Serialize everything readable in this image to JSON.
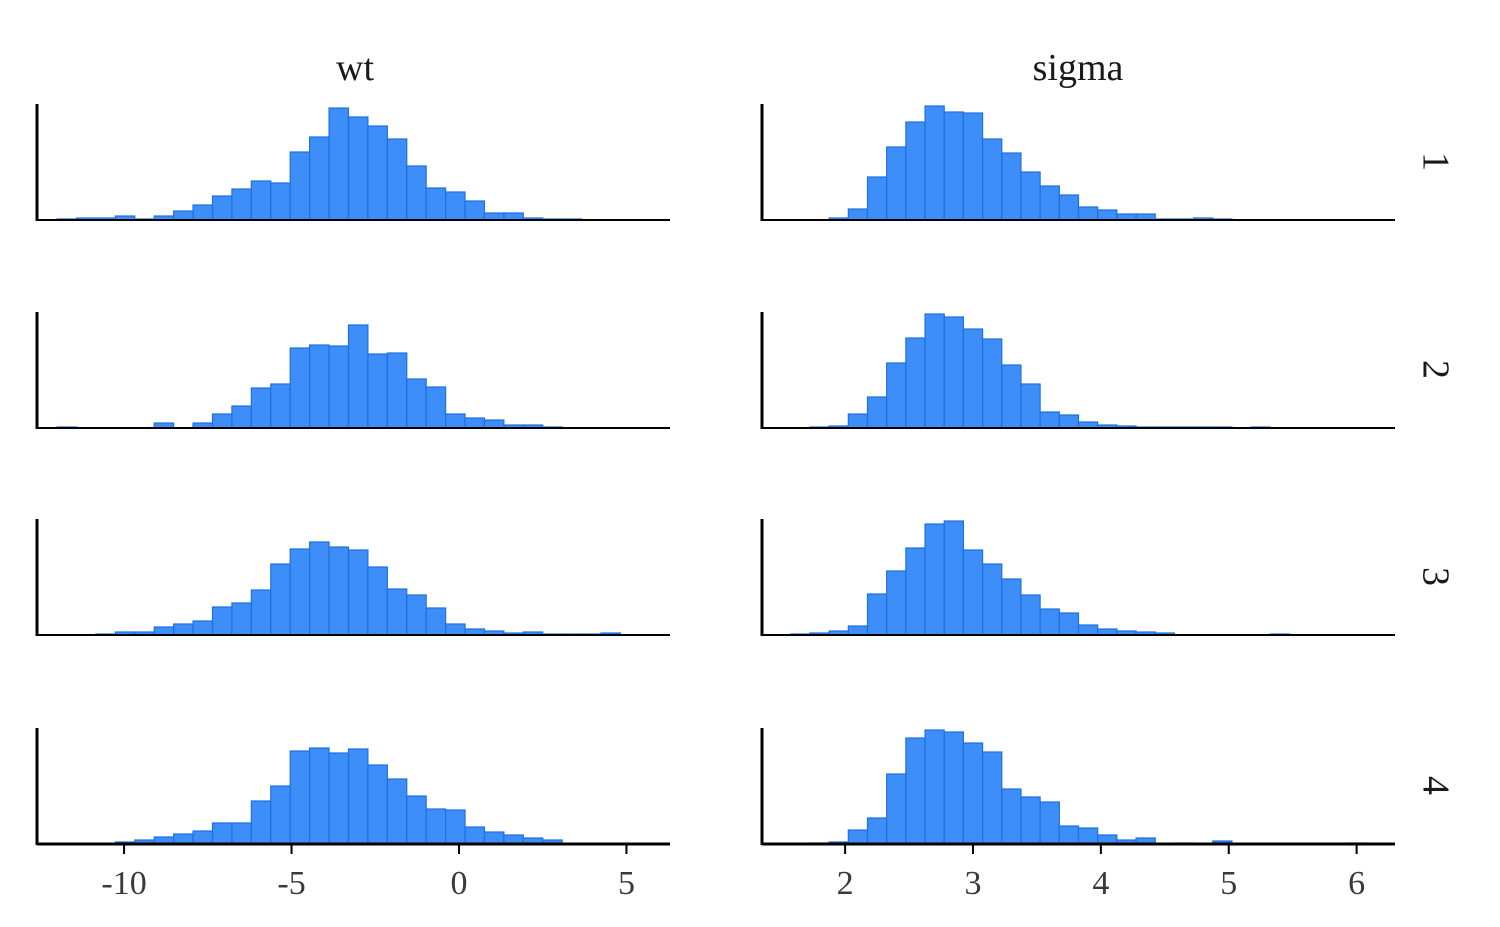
{
  "chart_data": {
    "type": "histogram-facet-grid",
    "columns": [
      "wt",
      "sigma"
    ],
    "rows": [
      "1",
      "2",
      "3",
      "4"
    ],
    "xlim": {
      "wt": [
        -12.6,
        6.3
      ],
      "sigma": [
        1.35,
        6.3
      ]
    },
    "xticks": {
      "wt": [
        -10,
        -5,
        0,
        5
      ],
      "sigma": [
        2,
        3,
        4,
        5,
        6
      ]
    },
    "xtick_labels": {
      "wt": [
        "-10",
        "-5",
        "0",
        "5"
      ],
      "sigma": [
        "2",
        "3",
        "4",
        "5",
        "6"
      ]
    },
    "bin_start": {
      "wt": -12.0,
      "sigma": 1.575
    },
    "bin_width": {
      "wt": 0.58,
      "sigma": 0.15
    },
    "ylim": [
      0,
      115
    ],
    "grid": false,
    "legend": "none",
    "bar_color": "#3d8ef8",
    "bar_edge_color": "#1f6fe0",
    "histograms": {
      "wt": [
        [
          1,
          2,
          2,
          4,
          1,
          4,
          9,
          15,
          24,
          31,
          39,
          37,
          68,
          83,
          112,
          103,
          94,
          81,
          54,
          32,
          28,
          19,
          7,
          7,
          2,
          1,
          1,
          0,
          0,
          0
        ],
        [
          1,
          0,
          0,
          0,
          0,
          5,
          0,
          5,
          14,
          22,
          40,
          44,
          80,
          83,
          82,
          103,
          74,
          75,
          49,
          41,
          14,
          10,
          8,
          3,
          3,
          1,
          0,
          0,
          0,
          0
        ],
        [
          0,
          0,
          1,
          3,
          3,
          8,
          11,
          14,
          28,
          32,
          45,
          71,
          86,
          93,
          88,
          85,
          68,
          46,
          40,
          27,
          11,
          6,
          4,
          2,
          3,
          1,
          1,
          1,
          2,
          0
        ],
        [
          0,
          0,
          0,
          2,
          4,
          7,
          10,
          13,
          21,
          21,
          43,
          58,
          93,
          96,
          91,
          95,
          79,
          65,
          48,
          35,
          34,
          17,
          12,
          9,
          6,
          4,
          0,
          0,
          0,
          0
        ]
      ],
      "sigma": [
        [
          0,
          0,
          2,
          11,
          43,
          73,
          98,
          114,
          108,
          107,
          81,
          67,
          48,
          34,
          25,
          13,
          10,
          6,
          6,
          1,
          1,
          2,
          1,
          0,
          0,
          0,
          0,
          0,
          0,
          0
        ],
        [
          0,
          1,
          2,
          14,
          31,
          65,
          90,
          114,
          111,
          99,
          89,
          63,
          44,
          16,
          13,
          6,
          3,
          2,
          1,
          1,
          1,
          1,
          1,
          0,
          1,
          0,
          0,
          0,
          0,
          0
        ],
        [
          1,
          2,
          4,
          9,
          41,
          64,
          87,
          111,
          114,
          85,
          71,
          56,
          40,
          26,
          22,
          10,
          6,
          4,
          3,
          2,
          0,
          0,
          0,
          0,
          0,
          1,
          0,
          0,
          0,
          0
        ],
        [
          0,
          1,
          2,
          14,
          26,
          70,
          106,
          114,
          112,
          101,
          92,
          55,
          47,
          42,
          18,
          16,
          9,
          4,
          6,
          0,
          1,
          0,
          3,
          0,
          0,
          0,
          0,
          0,
          0,
          1
        ]
      ]
    }
  }
}
